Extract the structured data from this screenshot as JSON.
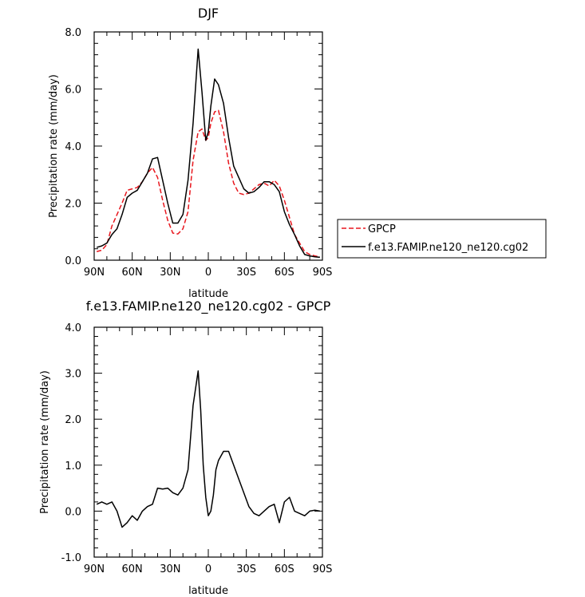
{
  "chart_data": [
    {
      "type": "line",
      "title": "DJF",
      "xlabel": "latitude",
      "ylabel": "Precipitation rate (mm/day)",
      "xlim": [
        -90,
        90
      ],
      "ylim": [
        0.0,
        8.0
      ],
      "xticks": [
        -90,
        -60,
        -30,
        0,
        30,
        60,
        90
      ],
      "xtick_labels": [
        "90N",
        "60N",
        "30N",
        "0",
        "30S",
        "60S",
        "90S"
      ],
      "yticks": [
        0,
        2,
        4,
        6,
        8
      ],
      "ytick_labels": [
        "0.0",
        "2.0",
        "4.0",
        "6.0",
        "8.0"
      ],
      "grid": false,
      "legend_position": "right-bottom outside plot",
      "series": [
        {
          "name": "GPCP",
          "color": "#e8171e",
          "dash": "dashed",
          "x": [
            -88,
            -84,
            -80,
            -76,
            -72,
            -68,
            -64,
            -60,
            -56,
            -52,
            -48,
            -44,
            -40,
            -36,
            -32,
            -28,
            -24,
            -20,
            -16,
            -12,
            -8,
            -5,
            -2,
            0,
            2,
            5,
            8,
            12,
            16,
            20,
            24,
            28,
            32,
            36,
            40,
            44,
            48,
            52,
            56,
            60,
            64,
            68,
            72,
            76,
            80,
            84,
            88
          ],
          "y": [
            0.3,
            0.35,
            0.55,
            1.2,
            1.6,
            2.0,
            2.45,
            2.5,
            2.55,
            2.75,
            3.05,
            3.25,
            2.9,
            2.1,
            1.4,
            0.95,
            0.92,
            1.1,
            1.7,
            3.5,
            4.5,
            4.6,
            4.2,
            4.3,
            4.8,
            5.2,
            5.25,
            4.5,
            3.4,
            2.7,
            2.35,
            2.3,
            2.35,
            2.5,
            2.65,
            2.7,
            2.6,
            2.8,
            2.6,
            2.1,
            1.5,
            0.9,
            0.6,
            0.3,
            0.2,
            0.15,
            0.12
          ]
        },
        {
          "name": "f.e13.FAMIP.ne120_ne120.cg02",
          "color": "#000000",
          "dash": "solid",
          "x": [
            -88,
            -84,
            -80,
            -76,
            -72,
            -68,
            -64,
            -60,
            -56,
            -52,
            -48,
            -44,
            -40,
            -36,
            -32,
            -28,
            -24,
            -20,
            -16,
            -12,
            -8,
            -5,
            -2,
            0,
            2,
            5,
            8,
            12,
            16,
            20,
            24,
            28,
            32,
            36,
            40,
            44,
            48,
            52,
            56,
            60,
            64,
            68,
            72,
            76,
            80,
            84,
            88
          ],
          "y": [
            0.45,
            0.5,
            0.6,
            0.9,
            1.1,
            1.6,
            2.2,
            2.35,
            2.45,
            2.75,
            3.05,
            3.55,
            3.6,
            2.8,
            2.0,
            1.3,
            1.3,
            1.6,
            2.8,
            4.8,
            7.4,
            5.9,
            4.2,
            4.5,
            5.4,
            6.35,
            6.15,
            5.5,
            4.3,
            3.3,
            2.9,
            2.5,
            2.35,
            2.4,
            2.55,
            2.75,
            2.75,
            2.65,
            2.4,
            1.7,
            1.25,
            0.9,
            0.5,
            0.2,
            0.15,
            0.12,
            0.1
          ]
        }
      ],
      "legend_entries": [
        "GPCP",
        "f.e13.FAMIP.ne120_ne120.cg02"
      ]
    },
    {
      "type": "line",
      "title": "f.e13.FAMIP.ne120_ne120.cg02 - GPCP",
      "xlabel": "latitude",
      "ylabel": "Precipitation rate (mm/day)",
      "xlim": [
        -90,
        90
      ],
      "ylim": [
        -1.0,
        4.0
      ],
      "xticks": [
        -90,
        -60,
        -30,
        0,
        30,
        60,
        90
      ],
      "xtick_labels": [
        "90N",
        "60N",
        "30N",
        "0",
        "30S",
        "60S",
        "90S"
      ],
      "yticks": [
        -1,
        0,
        1,
        2,
        3,
        4
      ],
      "ytick_labels": [
        "-1.0",
        "0.0",
        "1.0",
        "2.0",
        "3.0",
        "4.0"
      ],
      "grid": false,
      "series": [
        {
          "color": "#000000",
          "dash": "solid",
          "x": [
            -88,
            -84,
            -80,
            -76,
            -72,
            -68,
            -64,
            -60,
            -56,
            -52,
            -48,
            -44,
            -40,
            -36,
            -32,
            -28,
            -24,
            -20,
            -16,
            -12,
            -8,
            -6,
            -4,
            -2,
            0,
            2,
            4,
            6,
            8,
            10,
            12,
            16,
            20,
            24,
            28,
            32,
            36,
            40,
            44,
            48,
            52,
            56,
            60,
            64,
            68,
            72,
            76,
            80,
            84,
            88
          ],
          "y": [
            0.15,
            0.2,
            0.15,
            0.2,
            0.0,
            -0.35,
            -0.25,
            -0.1,
            -0.2,
            0.0,
            0.1,
            0.15,
            0.5,
            0.48,
            0.5,
            0.4,
            0.35,
            0.5,
            0.9,
            2.3,
            3.05,
            2.2,
            1.0,
            0.3,
            -0.1,
            0.0,
            0.35,
            0.9,
            1.1,
            1.2,
            1.3,
            1.3,
            1.0,
            0.7,
            0.4,
            0.1,
            -0.05,
            -0.1,
            0.0,
            0.1,
            0.15,
            -0.25,
            0.2,
            0.3,
            0.0,
            -0.05,
            -0.1,
            0.0,
            0.02,
            0.0
          ]
        }
      ]
    }
  ]
}
